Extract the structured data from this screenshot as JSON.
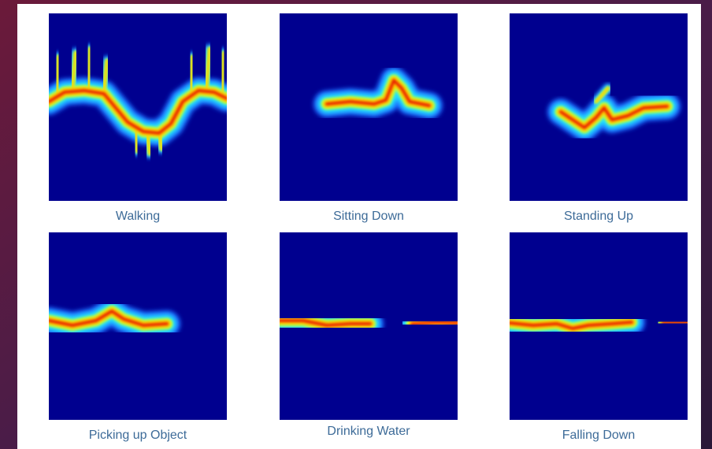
{
  "figures": [
    {
      "caption": "Walking"
    },
    {
      "caption": "Sitting Down"
    },
    {
      "caption": "Standing Up"
    },
    {
      "caption": "Picking up Object"
    },
    {
      "caption": "Drinking Water"
    },
    {
      "caption": "Falling Down"
    }
  ]
}
